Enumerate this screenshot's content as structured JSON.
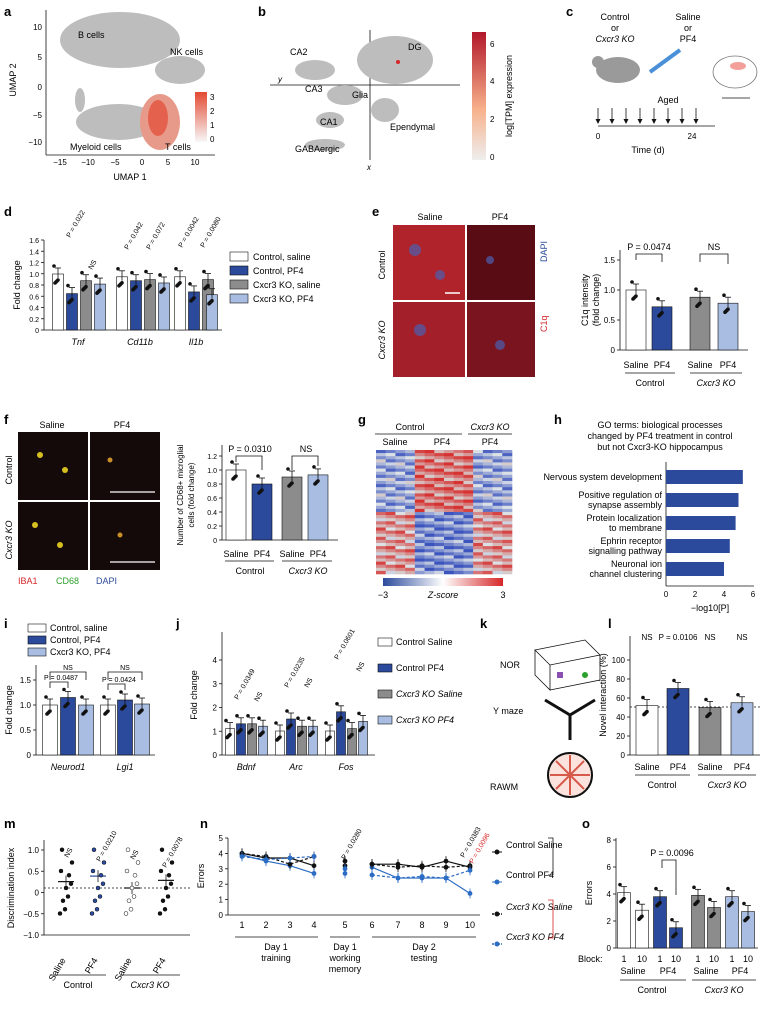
{
  "panels": {
    "a": {
      "letter": "a",
      "clusters": [
        "B cells",
        "NK cells",
        "Myeloid cells",
        "T cells"
      ],
      "xlabel": "UMAP 1",
      "ylabel": "UMAP 2",
      "xticks": [
        "−15",
        "−10",
        "−5",
        "0",
        "5",
        "10"
      ],
      "yticks": [
        "10",
        "5",
        "0",
        "−5",
        "−10"
      ],
      "scale": [
        "3",
        "2",
        "1",
        "0"
      ]
    },
    "b": {
      "letter": "b",
      "clusters": [
        "CA2",
        "DG",
        "CA3",
        "Glia",
        "CA1",
        "Ependymal",
        "GABAergic"
      ],
      "ax_x": "x",
      "ax_y": "y",
      "colorbar_label": "log[TPM] expression",
      "scale": [
        "6",
        "4",
        "2",
        "0"
      ]
    },
    "c": {
      "letter": "c",
      "group": "Control\nor\nCxcr3 KO",
      "group_l1": "Control",
      "group_l2": "or",
      "group_l3": "Cxcr3 KO",
      "treat_l1": "Saline",
      "treat_l2": "or",
      "treat_l3": "PF4",
      "aged": "Aged",
      "xticks": [
        "0",
        "24"
      ],
      "xlabel": "Time (d)"
    },
    "d": {
      "letter": "d",
      "ylabel": "Fold change",
      "yticks": [
        "1.6",
        "1.4",
        "1.2",
        "1.0",
        "0.8",
        "0.6",
        "0.4",
        "0.2",
        "0"
      ],
      "genes": [
        "Tnf",
        "Cd11b",
        "Il1b"
      ],
      "pvals": [
        "P = 0.022",
        "NS",
        "P = 0.042",
        "P = 0.072",
        "P = 0.0042",
        "P = 0.0080"
      ],
      "legend": [
        "Control, saline",
        "Control, PF4",
        "Cxcr3 KO, saline",
        "Cxcr3 KO, PF4"
      ]
    },
    "e": {
      "letter": "e",
      "cols": [
        "Saline",
        "PF4"
      ],
      "rows": [
        "Control",
        "Cxcr3 KO"
      ],
      "stain1": "DAPI",
      "stain2": "C1q",
      "ylabel": "C1q intensity (fold change)",
      "ylabel_l1": "C1q intensity",
      "ylabel_l2": "(fold change)",
      "yticks": [
        "1.5",
        "1.0",
        "0.5",
        "0"
      ],
      "xcats": [
        "Saline",
        "PF4",
        "Saline",
        "PF4"
      ],
      "groups": [
        "Control",
        "Cxcr3 KO"
      ],
      "pvals": [
        "P = 0.0474",
        "NS"
      ]
    },
    "f": {
      "letter": "f",
      "cols": [
        "Saline",
        "PF4"
      ],
      "rows": [
        "Control",
        "Cxcr3 KO"
      ],
      "stains": [
        "IBA1",
        "CD68",
        "DAPI"
      ],
      "ylabel_l1": "Number of CD68+ microglial",
      "ylabel_l2": "cells (fold change)",
      "yticks": [
        "1.2",
        "1.0",
        "0.8",
        "0.6",
        "0.4",
        "0.2",
        "0"
      ],
      "xcats": [
        "Saline",
        "PF4",
        "Saline",
        "PF4"
      ],
      "groups": [
        "Control",
        "Cxcr3 KO"
      ],
      "pvals": [
        "P = 0.0310",
        "NS"
      ]
    },
    "g": {
      "letter": "g",
      "top": [
        "Control",
        "Cxcr3 KO"
      ],
      "sub": [
        "Saline",
        "PF4",
        "PF4"
      ],
      "scale_min": "−3",
      "scale_mid": "Z-score",
      "scale_max": "3"
    },
    "h": {
      "letter": "h",
      "title_l1": "GO terms: biological processes",
      "title_l2": "changed by PF4 treatment in control",
      "title_l3": "but not Cxcr3-KO hippocampus",
      "terms": [
        "Nervous system development",
        "Positive regulation of synapse assembly",
        "Protein localization to membrane",
        "Ephrin receptor signalling pathway",
        "Neuronal ion channel clustering"
      ],
      "xlabel": "−log10[P]",
      "xticks": [
        "0",
        "2",
        "4",
        "6"
      ]
    },
    "i": {
      "letter": "i",
      "ylabel": "Fold change",
      "yticks": [
        "1.5",
        "1.0",
        "0.5",
        "0"
      ],
      "genes": [
        "Neurod1",
        "Lgi1"
      ],
      "pvals": [
        "P = 0.0487",
        "NS",
        "P = 0.0424",
        "NS"
      ],
      "legend": [
        "Control, saline",
        "Control, PF4",
        "Cxcr3 KO, PF4"
      ]
    },
    "j": {
      "letter": "j",
      "ylabel": "Fold change",
      "yticks": [
        "4",
        "3",
        "2",
        "1",
        "0"
      ],
      "genes": [
        "Bdnf",
        "Arc",
        "Fos"
      ],
      "pvals": [
        "P = 0.0349",
        "NS",
        "P = 0.0235",
        "NS",
        "P = 0.0601",
        "NS"
      ],
      "legend": [
        "Control Saline",
        "Control PF4",
        "Cxcr3 KO Saline",
        "Cxcr3 KO PF4"
      ]
    },
    "k": {
      "letter": "k",
      "tests": [
        "NOR",
        "Y maze",
        "RAWM"
      ]
    },
    "l": {
      "letter": "l",
      "ylabel": "Novel interaction (%)",
      "yticks": [
        "100",
        "80",
        "60",
        "40",
        "20",
        "0"
      ],
      "xcats": [
        "Saline",
        "PF4",
        "Saline",
        "PF4"
      ],
      "groups": [
        "Control",
        "Cxcr3 KO"
      ],
      "pvals": [
        "NS",
        "P = 0.0106",
        "NS",
        "NS"
      ]
    },
    "m": {
      "letter": "m",
      "ylabel": "Discrimination index",
      "yticks": [
        "1.0",
        "0.5",
        "0",
        "−0.5",
        "−1.0"
      ],
      "xcats": [
        "Saline",
        "PF4",
        "Saline",
        "PF4"
      ],
      "groups": [
        "Control",
        "Cxcr3 KO"
      ],
      "pvals": [
        "NS",
        "P = 0.0210",
        "NS",
        "P = 0.0078"
      ]
    },
    "n": {
      "letter": "n",
      "ylabel": "Errors",
      "yticks": [
        "5",
        "4",
        "3",
        "2",
        "1",
        "0"
      ],
      "xticks": [
        "1",
        "2",
        "3",
        "4",
        "5",
        "6",
        "7",
        "8",
        "9",
        "10"
      ],
      "blocks": [
        "Day 1\ntraining",
        "Day 1\nworking\nmemory",
        "Day 2\ntesting"
      ],
      "b1_l1": "Day 1",
      "b1_l2": "training",
      "b2_l1": "Day 1",
      "b2_l2": "working",
      "b2_l3": "memory",
      "b3": "Day 2",
      "b3_l2": "testing",
      "pvals": [
        "P = 0.0280",
        "P = 0.0383",
        "P = 0.0096"
      ],
      "legend": [
        "Control Saline",
        "Control PF4",
        "Cxcr3 KO Saline",
        "Cxcr3 KO PF4"
      ],
      "pval_red": "#d62728"
    },
    "o": {
      "letter": "o",
      "ylabel": "Errors",
      "yticks": [
        "8",
        "6",
        "4",
        "2",
        "0"
      ],
      "block_label": "Block:",
      "blocks": [
        "1",
        "10",
        "1",
        "10",
        "1",
        "10",
        "1",
        "10"
      ],
      "xcats": [
        "Saline",
        "PF4",
        "Saline",
        "PF4"
      ],
      "groups": [
        "Control",
        "Cxcr3 KO"
      ],
      "pval": "P = 0.0096"
    }
  },
  "colors": {
    "white": "#ffffff",
    "darkblue": "#2b4a9b",
    "grey": "#8c8c8c",
    "lightblue": "#a9bde3",
    "red": "#d62728"
  }
}
